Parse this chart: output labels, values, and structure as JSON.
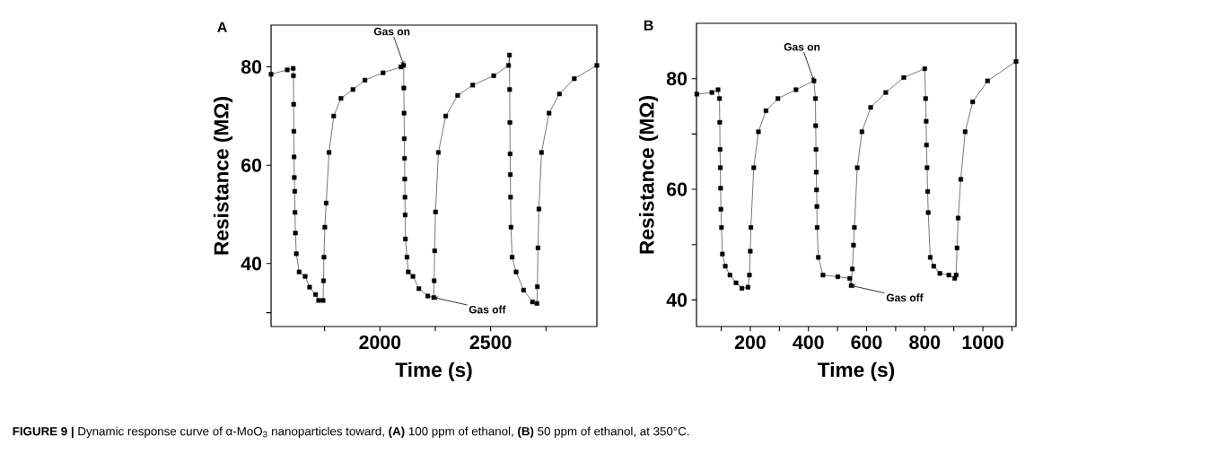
{
  "chart_data": [
    {
      "type": "line",
      "title": "A",
      "xlabel": "Time (s)",
      "ylabel": "Resistance (MΩ)",
      "color": "#000000",
      "marker": "square",
      "line_style": "solid",
      "xlim": [
        1508,
        2980
      ],
      "ylim": [
        27.2,
        88.5
      ],
      "xticks": [
        {
          "value": 1750,
          "label": null
        },
        2000,
        {
          "value": 2250,
          "label": null
        },
        2500,
        {
          "value": 2750,
          "label": null
        }
      ],
      "yticks": [
        {
          "value": 30,
          "label": null
        },
        40,
        60,
        80
      ],
      "x": [
        1508,
        1581,
        1608,
        1609,
        1610,
        1611,
        1612,
        1613,
        1615,
        1616,
        1618,
        1622,
        1635,
        1662,
        1682,
        1709,
        1723,
        1743,
        1745,
        1747,
        1751,
        1757,
        1770,
        1791,
        1824,
        1878,
        1932,
        2014,
        2095,
        2107,
        2108,
        2109,
        2110,
        2111,
        2112,
        2113,
        2114,
        2115,
        2122,
        2128,
        2149,
        2176,
        2216,
        2243,
        2245,
        2247,
        2251,
        2264,
        2297,
        2351,
        2419,
        2514,
        2581,
        2585,
        2586,
        2587,
        2588,
        2589,
        2590,
        2592,
        2597,
        2615,
        2649,
        2689,
        2709,
        2711,
        2714,
        2718,
        2730,
        2764,
        2811,
        2878,
        2980
      ],
      "values": [
        78.5,
        79.4,
        79.7,
        78.2,
        72.4,
        66.9,
        61.7,
        57.5,
        54.7,
        50.4,
        46.2,
        42.0,
        38.3,
        37.4,
        35.2,
        33.7,
        32.5,
        32.5,
        36.5,
        41.3,
        47.4,
        52.3,
        62.6,
        70.0,
        73.6,
        75.4,
        77.3,
        78.8,
        80.0,
        80.3,
        75.7,
        70.6,
        65.4,
        61.4,
        57.2,
        53.5,
        49.9,
        45.0,
        41.3,
        38.3,
        37.4,
        34.9,
        33.4,
        33.1,
        36.5,
        42.6,
        50.5,
        62.6,
        70.0,
        74.2,
        76.3,
        78.2,
        80.3,
        82.4,
        75.4,
        68.7,
        62.3,
        58.1,
        53.5,
        47.4,
        41.3,
        38.3,
        34.6,
        32.2,
        31.9,
        35.3,
        43.2,
        51.1,
        62.6,
        70.6,
        74.5,
        77.6,
        80.3
      ],
      "annotations": [
        {
          "text": "Gas on",
          "x": 2108,
          "y": 80.3
        },
        {
          "text": "Gas off",
          "x": 2243,
          "y": 33.1
        },
        "**FIGURE 9 |** Dynamic response curve of α-MoO$_{3}$ nanoparticles toward, **(A)** 100 ppm of ethanol, **(B)** 50 ppm of ethanol, at 350°C."
      ]
    },
    {
      "type": "line",
      "title": "B",
      "xlabel": "Time (s)",
      "ylabel": "Resistance (MΩ)",
      "color": "#000000",
      "marker": "square",
      "line_style": "solid",
      "xlim": [
        15,
        1114
      ],
      "ylim": [
        35.2,
        90
      ],
      "xticks": [
        {
          "value": 100,
          "label": null
        },
        200,
        {
          "value": 300,
          "label": null
        },
        400,
        {
          "value": 500,
          "label": null
        },
        600,
        {
          "value": 700,
          "label": null
        },
        800,
        {
          "value": 900,
          "label": null
        },
        1000,
        {
          "value": 1100,
          "label": null
        }
      ],
      "yticks": [
        40,
        {
          "value": 50,
          "label": null
        },
        60,
        {
          "value": 70,
          "label": null
        },
        80
      ],
      "x": [
        16,
        68,
        89,
        94,
        95,
        96,
        97,
        98,
        99,
        101,
        104,
        114,
        130,
        151,
        171,
        192,
        197,
        200,
        202,
        212,
        228,
        254,
        295,
        357,
        419,
        424,
        425,
        426,
        427,
        428,
        429,
        430,
        434,
        450,
        501,
        542,
        547,
        551,
        555,
        558,
        568,
        584,
        614,
        666,
        728,
        800,
        803,
        805,
        806,
        808,
        810,
        812,
        819,
        831,
        852,
        883,
        903,
        908,
        911,
        915,
        924,
        939,
        965,
        1016,
        1114
      ],
      "values": [
        77.2,
        77.5,
        78.0,
        76.4,
        72.1,
        67.2,
        63.9,
        60.2,
        56.4,
        53.1,
        48.3,
        46.1,
        44.5,
        43.1,
        42.1,
        42.3,
        44.5,
        48.8,
        53.1,
        63.9,
        70.4,
        74.2,
        76.4,
        78.0,
        79.6,
        76.4,
        71.5,
        67.2,
        63.1,
        59.9,
        56.9,
        53.1,
        47.7,
        44.5,
        44.2,
        43.9,
        42.6,
        45.6,
        49.9,
        53.1,
        63.9,
        70.4,
        74.8,
        77.5,
        80.2,
        81.8,
        76.4,
        72.3,
        68.0,
        63.9,
        59.6,
        55.8,
        47.7,
        46.1,
        44.8,
        44.5,
        43.9,
        44.5,
        49.4,
        54.8,
        61.8,
        70.4,
        75.8,
        79.6,
        83.1
      ],
      "annotations": [
        {
          "text": "Gas on",
          "x": 419,
          "y": 79.6
        },
        {
          "text": "Gas off",
          "x": 547,
          "y": 42.6
        }
      ]
    }
  ]
}
